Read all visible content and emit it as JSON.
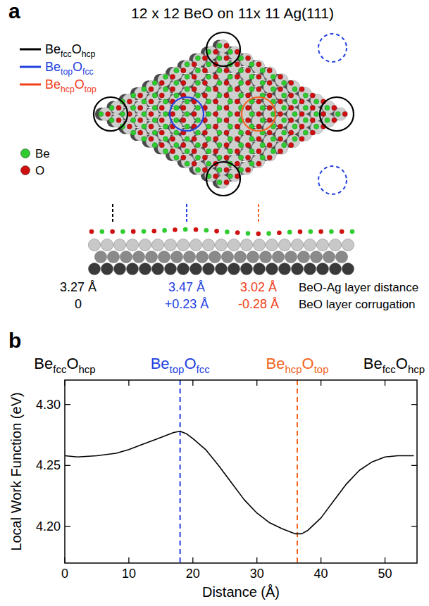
{
  "panel_letters": [
    "a",
    "b"
  ],
  "panel_a": {
    "title": "12 x 12 BeO on 11x 11 Ag(111)",
    "sites": [
      {
        "label": [
          "Be",
          "fcc",
          "O",
          "hcp"
        ],
        "color": "#000000",
        "layer_distance": "3.27 Å",
        "corrugation": "0"
      },
      {
        "label": [
          "Be",
          "top",
          "O",
          "fcc"
        ],
        "color": "#2341e0",
        "layer_distance": "3.47 Å",
        "corrugation": "+0.23 Å"
      },
      {
        "label": [
          "Be",
          "hcp",
          "O",
          "top"
        ],
        "color": "#f0401a",
        "layer_distance": "3.02 Å",
        "corrugation": "-0.28 Å"
      }
    ],
    "atoms": [
      {
        "label": "Be",
        "color": "#2ecc2e"
      },
      {
        "label": "O",
        "color": "#d01010"
      }
    ],
    "row_labels": [
      "BeO-Ag layer distance",
      "BeO layer corrugation"
    ]
  },
  "chart_data": {
    "type": "line",
    "x": [
      0,
      2,
      5,
      8,
      10,
      12,
      14,
      16,
      17,
      18,
      19,
      20,
      22,
      24,
      26,
      28,
      30,
      32,
      34,
      36,
      37,
      38,
      40,
      42,
      44,
      46,
      48,
      50,
      52,
      54.5
    ],
    "values": [
      4.258,
      4.257,
      4.258,
      4.26,
      4.263,
      4.267,
      4.271,
      4.275,
      4.277,
      4.278,
      4.276,
      4.272,
      4.263,
      4.25,
      4.236,
      4.222,
      4.211,
      4.203,
      4.198,
      4.194,
      4.194,
      4.197,
      4.207,
      4.221,
      4.235,
      4.246,
      4.253,
      4.257,
      4.258,
      4.258
    ],
    "color": "#000000",
    "xlabel": "Distance (Å)",
    "ylabel": "Local Work Function (eV)",
    "xlim": [
      0,
      55
    ],
    "ylim": [
      4.17,
      4.32
    ],
    "xticks": [
      0,
      10,
      20,
      30,
      40,
      50
    ],
    "yticks": [
      {
        "value": 4.2,
        "label": "4.20"
      },
      {
        "value": 4.25,
        "label": "4.25"
      },
      {
        "value": 4.3,
        "label": "4.30"
      }
    ],
    "annotations": [
      {
        "x": 0,
        "label": [
          "Be",
          "fcc",
          "O",
          "hcp"
        ],
        "color": "#000000"
      },
      {
        "x": 18,
        "label": [
          "Be",
          "top",
          "O",
          "fcc"
        ],
        "color": "#2341e0",
        "line_style": "dashed"
      },
      {
        "x": 36.3,
        "label": [
          "Be",
          "hcp",
          "O",
          "top"
        ],
        "color": "#f26522",
        "line_style": "dashed"
      },
      {
        "x": 55,
        "label": [
          "Be",
          "fcc",
          "O",
          "hcp"
        ],
        "color": "#000000"
      }
    ]
  }
}
